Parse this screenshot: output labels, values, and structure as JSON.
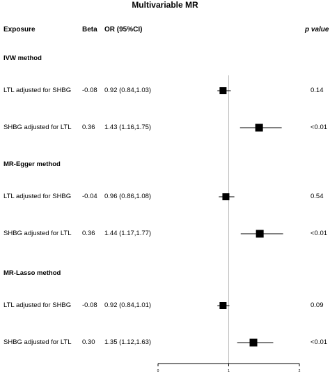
{
  "title": "Multivariable MR",
  "headers": {
    "exposure": "Exposure",
    "beta": "Beta",
    "or": "OR (95%CI)",
    "pval": "p value"
  },
  "chart_data": {
    "type": "forest",
    "title": "Multivariable MR",
    "xlim": [
      0,
      2
    ],
    "x_ticks": [
      "0",
      "1",
      "2"
    ],
    "reference_line": 1,
    "sections": [
      {
        "label": "IVW method",
        "rows": [
          {
            "exposure": "LTL adjusted for SHBG",
            "beta": "-0.08",
            "or_text": "0.92 (0.84,1.03)",
            "or": 0.92,
            "lo": 0.84,
            "hi": 1.03,
            "p": "0.14"
          },
          {
            "exposure": "SHBG adjusted for LTL",
            "beta": "0.36",
            "or_text": "1.43 (1.16,1.75)",
            "or": 1.43,
            "lo": 1.16,
            "hi": 1.75,
            "p": "<0.01"
          }
        ]
      },
      {
        "label": "MR-Egger method",
        "rows": [
          {
            "exposure": "LTL adjusted for SHBG",
            "beta": "-0.04",
            "or_text": "0.96 (0.86,1.08)",
            "or": 0.96,
            "lo": 0.86,
            "hi": 1.08,
            "p": "0.54"
          },
          {
            "exposure": "SHBG adjusted for LTL",
            "beta": "0.36",
            "or_text": "1.44 (1.17,1.77)",
            "or": 1.44,
            "lo": 1.17,
            "hi": 1.77,
            "p": "<0.01"
          }
        ]
      },
      {
        "label": "MR-Lasso method",
        "rows": [
          {
            "exposure": "LTL adjusted for SHBG",
            "beta": "-0.08",
            "or_text": "0.92 (0.84,1.01)",
            "or": 0.92,
            "lo": 0.84,
            "hi": 1.01,
            "p": "0.09"
          },
          {
            "exposure": "SHBG adjusted for LTL",
            "beta": "0.30",
            "or_text": "1.35 (1.12,1.63)",
            "or": 1.35,
            "lo": 1.12,
            "hi": 1.63,
            "p": "<0.01"
          }
        ]
      }
    ]
  }
}
